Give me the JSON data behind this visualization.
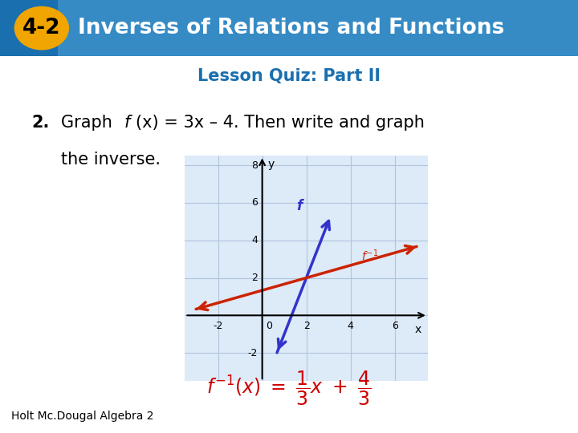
{
  "header_bg_color": "#1a6faf",
  "header_text": "Inverses of Relations and Functions",
  "header_badge": "4-2",
  "header_badge_bg": "#f0a500",
  "subtitle": "Lesson Quiz: Part II",
  "subtitle_color": "#1a6faf",
  "f_color": "#3333cc",
  "finv_color": "#cc2200",
  "grid_color": "#b0c4de",
  "graph_bg": "#ddeaf8",
  "bg_color": "#ffffff",
  "footer_text": "Holt Mc.Dougal Algebra 2",
  "footer_bg": "#cc0000",
  "formula_color": "#cc0000",
  "graph_xlim": [
    -3.5,
    7.5
  ],
  "graph_ylim": [
    -3.5,
    8.5
  ],
  "graph_xticks": [
    -2,
    0,
    2,
    4,
    6
  ],
  "graph_yticks": [
    -2,
    0,
    2,
    4,
    6,
    8
  ]
}
